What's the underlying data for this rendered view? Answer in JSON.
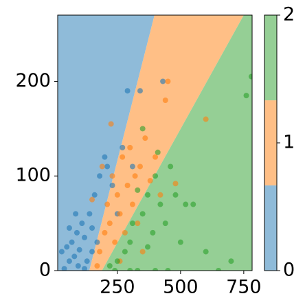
{
  "chart_data": {
    "type": "scatter",
    "xlim": [
      14,
      783
    ],
    "ylim": [
      0,
      270
    ],
    "xticks": [
      250,
      500,
      750
    ],
    "yticks": [
      0,
      100,
      200
    ],
    "regions": [
      {
        "color": "#8fbbd9",
        "polygon_x": [
          14,
          139,
          397,
          14
        ],
        "polygon_y": [
          0,
          0,
          270,
          270
        ]
      },
      {
        "color": "#ffbf86",
        "polygon_x": [
          139,
          189,
          750,
          397
        ],
        "polygon_y": [
          0,
          0,
          270,
          270
        ]
      },
      {
        "color": "#95cf95",
        "polygon_x": [
          189,
          783,
          783,
          750
        ],
        "polygon_y": [
          0,
          0,
          270,
          270
        ]
      }
    ],
    "series": [
      {
        "color": "#1f77b4",
        "x": [
          30,
          50,
          60,
          70,
          80,
          90,
          100,
          110,
          120,
          130,
          140,
          150,
          160,
          170,
          180,
          200,
          210,
          230,
          250,
          270,
          290,
          340,
          430,
          310,
          60,
          95,
          40,
          120,
          150,
          85
        ],
        "values": [
          20,
          25,
          10,
          30,
          15,
          40,
          22,
          50,
          35,
          10,
          60,
          45,
          80,
          30,
          100,
          120,
          110,
          90,
          60,
          130,
          190,
          190,
          200,
          110,
          45,
          5,
          2,
          2,
          20,
          60
        ]
      },
      {
        "color": "#ff7f0e",
        "x": [
          180,
          200,
          210,
          220,
          230,
          240,
          250,
          260,
          270,
          280,
          290,
          300,
          310,
          320,
          330,
          340,
          360,
          380,
          400,
          440,
          450,
          600,
          480,
          260,
          225,
          190,
          350,
          420,
          150,
          170
        ],
        "values": [
          20,
          40,
          70,
          50,
          100,
          30,
          80,
          60,
          120,
          40,
          90,
          130,
          70,
          100,
          50,
          110,
          140,
          95,
          120,
          180,
          200,
          160,
          92,
          10,
          155,
          110,
          20,
          80,
          75,
          5
        ]
      },
      {
        "color": "#2ca02c",
        "x": [
          220,
          250,
          280,
          300,
          310,
          330,
          350,
          370,
          390,
          400,
          420,
          440,
          460,
          480,
          500,
          520,
          550,
          600,
          650,
          700,
          760,
          780,
          350,
          410,
          300,
          400,
          450,
          240,
          370,
          330
        ],
        "values": [
          5,
          10,
          20,
          30,
          50,
          0,
          60,
          80,
          40,
          100,
          70,
          50,
          110,
          80,
          30,
          70,
          70,
          20,
          0,
          10,
          185,
          205,
          150,
          125,
          0,
          0,
          0,
          0,
          25,
          85
        ]
      }
    ],
    "colorbar": {
      "ylim": [
        0,
        2
      ],
      "yticks": [
        0,
        1,
        2
      ],
      "boundaries": [
        0,
        0.667,
        1.333,
        2
      ],
      "colors": [
        "#8fbbd9",
        "#ffbf86",
        "#95cf95"
      ]
    }
  }
}
